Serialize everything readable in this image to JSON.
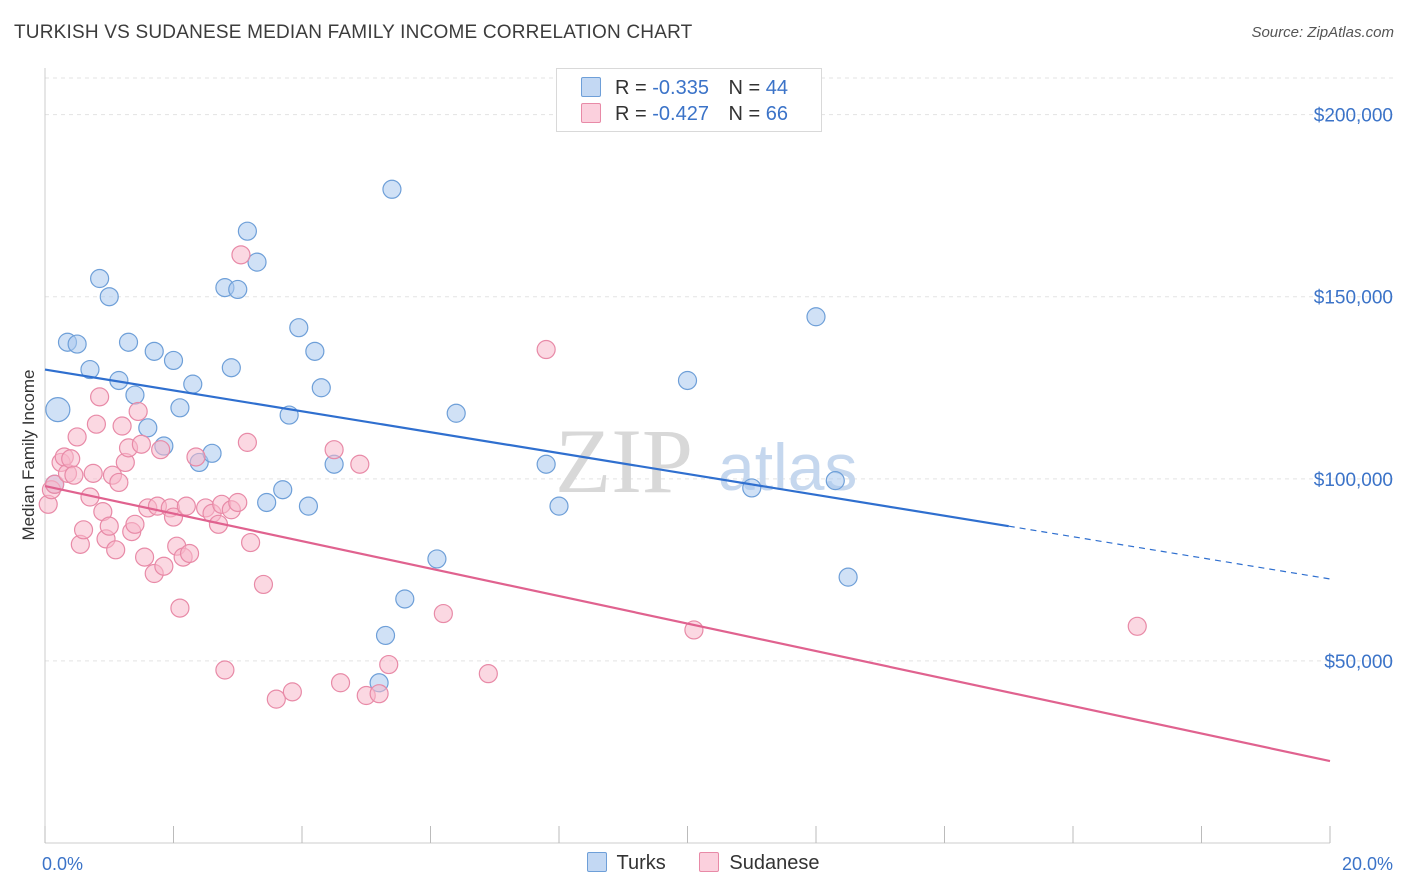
{
  "header": {
    "title": "TURKISH VS SUDANESE MEDIAN FAMILY INCOME CORRELATION CHART",
    "source": "Source: ZipAtlas.com"
  },
  "watermark": {
    "zip": "ZIP",
    "atlas": "atlas"
  },
  "legend": {
    "rows": [
      {
        "r_label": "R =",
        "r_value": "-0.335",
        "n_label": "N =",
        "n_value": "44",
        "color": "#a9c8ef"
      },
      {
        "r_label": "R =",
        "r_value": "-0.427",
        "n_label": "N =",
        "n_value": "66",
        "color": "#f7b8cb"
      }
    ]
  },
  "bottom_legend": {
    "series1": "Turks",
    "series2": "Sudanese"
  },
  "colors": {
    "turks_fill": "#a9c8ef",
    "turks_stroke": "#6e9fd8",
    "turks_line": "#2f6fcf",
    "sudanese_fill": "#f7b8cb",
    "sudanese_stroke": "#e88aa7",
    "sudanese_line": "#e0628f",
    "axis_label": "#3b73c8",
    "grid": "#e3e3e3"
  },
  "chart_data": {
    "type": "scatter",
    "title": "TURKISH VS SUDANESE MEDIAN FAMILY INCOME CORRELATION CHART",
    "xlabel": "",
    "ylabel": "Median Family Income",
    "xlim": [
      0,
      20
    ],
    "ylim": [
      0,
      215000
    ],
    "x_tick_labels": [
      {
        "value": 0,
        "label": "0.0%"
      },
      {
        "value": 20,
        "label": "20.0%"
      }
    ],
    "y_tick_labels": [
      {
        "value": 50000,
        "label": "$50,000"
      },
      {
        "value": 100000,
        "label": "$100,000"
      },
      {
        "value": 150000,
        "label": "$150,000"
      },
      {
        "value": 200000,
        "label": "$200,000"
      }
    ],
    "grid": true,
    "legend_position": "top-center",
    "series": [
      {
        "name": "Turks",
        "points": [
          [
            0.2,
            119000
          ],
          [
            0.35,
            137500
          ],
          [
            0.5,
            137000
          ],
          [
            0.7,
            130000
          ],
          [
            0.85,
            155000
          ],
          [
            1.0,
            150000
          ],
          [
            1.15,
            127000
          ],
          [
            1.3,
            137500
          ],
          [
            1.4,
            123000
          ],
          [
            1.6,
            114000
          ],
          [
            1.7,
            135000
          ],
          [
            1.85,
            109000
          ],
          [
            2.0,
            132500
          ],
          [
            2.1,
            119500
          ],
          [
            2.3,
            126000
          ],
          [
            2.4,
            104500
          ],
          [
            2.6,
            107000
          ],
          [
            2.8,
            152500
          ],
          [
            2.9,
            130500
          ],
          [
            3.0,
            152000
          ],
          [
            3.15,
            168000
          ],
          [
            3.3,
            159500
          ],
          [
            3.45,
            93500
          ],
          [
            3.7,
            97000
          ],
          [
            3.8,
            117500
          ],
          [
            3.95,
            141500
          ],
          [
            4.1,
            92500
          ],
          [
            4.2,
            135000
          ],
          [
            4.3,
            125000
          ],
          [
            4.5,
            104000
          ],
          [
            5.2,
            44000
          ],
          [
            5.3,
            57000
          ],
          [
            5.4,
            179500
          ],
          [
            5.6,
            67000
          ],
          [
            6.1,
            78000
          ],
          [
            6.4,
            118000
          ],
          [
            7.8,
            104000
          ],
          [
            8.0,
            92500
          ],
          [
            10.0,
            127000
          ],
          [
            11.0,
            97500
          ],
          [
            12.0,
            144500
          ],
          [
            12.3,
            99500
          ],
          [
            12.5,
            73000
          ],
          [
            0.15,
            98500
          ]
        ]
      },
      {
        "name": "Sudanese",
        "points": [
          [
            0.05,
            93000
          ],
          [
            0.1,
            97000
          ],
          [
            0.15,
            98500
          ],
          [
            0.25,
            104500
          ],
          [
            0.3,
            106000
          ],
          [
            0.35,
            101500
          ],
          [
            0.4,
            105500
          ],
          [
            0.45,
            101000
          ],
          [
            0.5,
            111500
          ],
          [
            0.55,
            82000
          ],
          [
            0.6,
            86000
          ],
          [
            0.7,
            95000
          ],
          [
            0.75,
            101500
          ],
          [
            0.8,
            115000
          ],
          [
            0.85,
            122500
          ],
          [
            0.9,
            91000
          ],
          [
            0.95,
            83500
          ],
          [
            1.0,
            87000
          ],
          [
            1.05,
            101000
          ],
          [
            1.1,
            80500
          ],
          [
            1.15,
            99000
          ],
          [
            1.2,
            114500
          ],
          [
            1.25,
            104500
          ],
          [
            1.3,
            108500
          ],
          [
            1.35,
            85500
          ],
          [
            1.4,
            87500
          ],
          [
            1.45,
            118500
          ],
          [
            1.5,
            109500
          ],
          [
            1.55,
            78500
          ],
          [
            1.6,
            92000
          ],
          [
            1.7,
            74000
          ],
          [
            1.75,
            92500
          ],
          [
            1.8,
            108000
          ],
          [
            1.85,
            76000
          ],
          [
            1.95,
            92000
          ],
          [
            2.0,
            89500
          ],
          [
            2.05,
            81500
          ],
          [
            2.1,
            64500
          ],
          [
            2.15,
            78500
          ],
          [
            2.2,
            92500
          ],
          [
            2.25,
            79500
          ],
          [
            2.35,
            106000
          ],
          [
            2.5,
            92000
          ],
          [
            2.6,
            90500
          ],
          [
            2.7,
            87500
          ],
          [
            2.75,
            93000
          ],
          [
            2.8,
            47500
          ],
          [
            2.9,
            91500
          ],
          [
            3.0,
            93500
          ],
          [
            3.05,
            161500
          ],
          [
            3.15,
            110000
          ],
          [
            3.2,
            82500
          ],
          [
            3.4,
            71000
          ],
          [
            3.6,
            39500
          ],
          [
            3.85,
            41500
          ],
          [
            4.5,
            108000
          ],
          [
            4.6,
            44000
          ],
          [
            5.0,
            40500
          ],
          [
            5.2,
            41000
          ],
          [
            5.35,
            49000
          ],
          [
            6.2,
            63000
          ],
          [
            6.9,
            46500
          ],
          [
            7.8,
            135500
          ],
          [
            10.1,
            58500
          ],
          [
            17.0,
            59500
          ],
          [
            4.9,
            104000
          ]
        ]
      }
    ],
    "trendlines": [
      {
        "series": "Turks",
        "x": [
          0,
          15.0
        ],
        "y": [
          130000,
          87000
        ],
        "dashed_extension_to": [
          20,
          72500
        ]
      },
      {
        "series": "Sudanese",
        "x": [
          0,
          20
        ],
        "y": [
          98000,
          22500
        ]
      }
    ]
  }
}
